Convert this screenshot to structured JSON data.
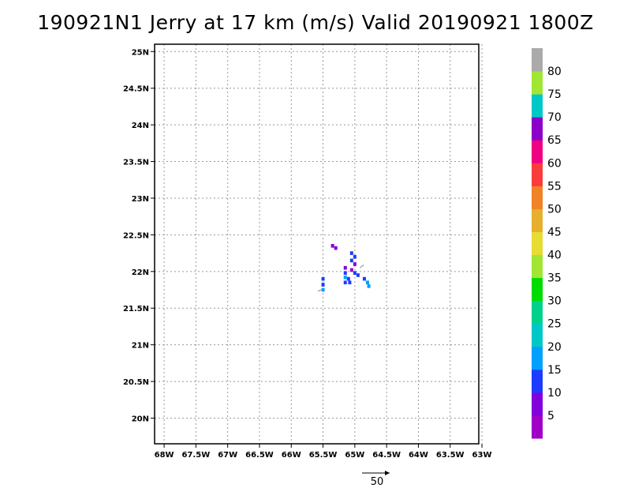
{
  "title": "190921N1 Jerry at 17 km (m/s) Valid 20190921  1800Z",
  "axes": {
    "x_ticks": [
      {
        "value": -68,
        "label": "68W"
      },
      {
        "value": -67.5,
        "label": "67.5W"
      },
      {
        "value": -67,
        "label": "67W"
      },
      {
        "value": -66.5,
        "label": "66.5W"
      },
      {
        "value": -66,
        "label": "66W"
      },
      {
        "value": -65.5,
        "label": "65.5W"
      },
      {
        "value": -65,
        "label": "65W"
      },
      {
        "value": -64.5,
        "label": "64.5W"
      },
      {
        "value": -64,
        "label": "64W"
      },
      {
        "value": -63.5,
        "label": "63.5W"
      },
      {
        "value": -63,
        "label": "63W"
      }
    ],
    "y_ticks": [
      {
        "value": 20,
        "label": "20N"
      },
      {
        "value": 20.5,
        "label": "20.5N"
      },
      {
        "value": 21,
        "label": "21N"
      },
      {
        "value": 21.5,
        "label": "21.5N"
      },
      {
        "value": 22,
        "label": "22N"
      },
      {
        "value": 22.5,
        "label": "22.5N"
      },
      {
        "value": 23,
        "label": "23N"
      },
      {
        "value": 23.5,
        "label": "23.5N"
      },
      {
        "value": 24,
        "label": "24N"
      },
      {
        "value": 24.5,
        "label": "24.5N"
      },
      {
        "value": 25,
        "label": "25N"
      }
    ],
    "lon_range": [
      -68.15,
      -63.05
    ],
    "lat_range": [
      19.65,
      25.1
    ],
    "grid": true
  },
  "colorbar": {
    "levels": [
      {
        "color": "#a000c8"
      },
      {
        "color": "#8200dc"
      },
      {
        "color": "#1e3cff"
      },
      {
        "color": "#00a0ff"
      },
      {
        "color": "#00c8c8"
      },
      {
        "color": "#00d28c"
      },
      {
        "color": "#00dc00"
      },
      {
        "color": "#a0e632"
      },
      {
        "color": "#e6dc32"
      },
      {
        "color": "#e6af2d"
      },
      {
        "color": "#f08228"
      },
      {
        "color": "#fa3c3c"
      },
      {
        "color": "#f00082"
      },
      {
        "color": "#8c00c8"
      },
      {
        "color": "#00c8c8"
      },
      {
        "color": "#a0e632"
      },
      {
        "color": "#aaaaaa"
      }
    ],
    "labels": [
      "5",
      "10",
      "15",
      "20",
      "25",
      "30",
      "35",
      "40",
      "45",
      "50",
      "55",
      "60",
      "65",
      "70",
      "75",
      "80"
    ]
  },
  "chart_data": {
    "type": "heatmap",
    "title": "190921N1 Jerry at 17 km (m/s) Valid 20190921  1800Z",
    "xlabel": "",
    "ylabel": "",
    "units": "m/s",
    "cells": [
      {
        "lon": -65.35,
        "lat": 22.35,
        "color": "#8200dc"
      },
      {
        "lon": -65.3,
        "lat": 22.32,
        "color": "#8200dc"
      },
      {
        "lon": -65.05,
        "lat": 22.25,
        "color": "#1e3cff"
      },
      {
        "lon": -65.0,
        "lat": 22.2,
        "color": "#1e3cff"
      },
      {
        "lon": -65.05,
        "lat": 22.15,
        "color": "#1e3cff"
      },
      {
        "lon": -65.0,
        "lat": 22.1,
        "color": "#8200dc"
      },
      {
        "lon": -65.15,
        "lat": 22.05,
        "color": "#8200dc"
      },
      {
        "lon": -65.05,
        "lat": 22.02,
        "color": "#a000c8"
      },
      {
        "lon": -65.15,
        "lat": 21.98,
        "color": "#1e3cff"
      },
      {
        "lon": -65.0,
        "lat": 21.98,
        "color": "#1e3cff"
      },
      {
        "lon": -64.95,
        "lat": 21.95,
        "color": "#1e3cff"
      },
      {
        "lon": -65.15,
        "lat": 21.92,
        "color": "#00a0ff"
      },
      {
        "lon": -65.1,
        "lat": 21.9,
        "color": "#1e3cff"
      },
      {
        "lon": -65.15,
        "lat": 21.85,
        "color": "#1e3cff"
      },
      {
        "lon": -65.08,
        "lat": 21.85,
        "color": "#1e3cff"
      },
      {
        "lon": -64.85,
        "lat": 21.9,
        "color": "#1e3cff"
      },
      {
        "lon": -64.8,
        "lat": 21.85,
        "color": "#00a0ff"
      },
      {
        "lon": -64.78,
        "lat": 21.8,
        "color": "#00a0ff"
      },
      {
        "lon": -65.5,
        "lat": 21.9,
        "color": "#1e3cff"
      },
      {
        "lon": -65.5,
        "lat": 21.82,
        "color": "#1e3cff"
      },
      {
        "lon": -65.5,
        "lat": 21.75,
        "color": "#00a0ff"
      }
    ],
    "reference_vector": {
      "value": 50,
      "label": "50"
    }
  }
}
